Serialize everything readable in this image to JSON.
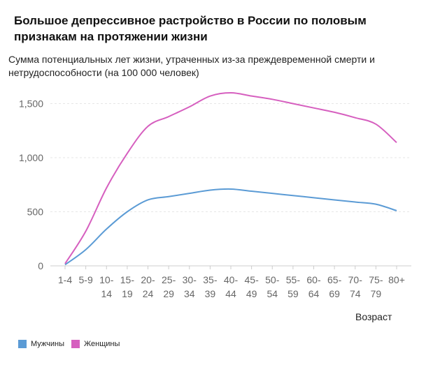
{
  "chart_data": {
    "type": "line",
    "title": "Большое депрессивное растройство в России по половым признакам на протяжении жизни",
    "subtitle": "Сумма потенциальных лет жизни, утраченных из-за преждевременной смерти и нетрудоспособности (на 100 000 человек)",
    "xlabel": "Возраст",
    "ylabel": "",
    "ylim": [
      0,
      1600
    ],
    "yticks": [
      0,
      500,
      1000,
      1500
    ],
    "ytick_labels": [
      "0",
      "500",
      "1,000",
      "1,500"
    ],
    "grid": true,
    "legend_position": "bottom-left",
    "categories": [
      [
        "1-4"
      ],
      [
        "5-9"
      ],
      [
        "10-",
        "14"
      ],
      [
        "15-",
        "19"
      ],
      [
        "20-",
        "24"
      ],
      [
        "25-",
        "29"
      ],
      [
        "30-",
        "34"
      ],
      [
        "35-",
        "39"
      ],
      [
        "40-",
        "44"
      ],
      [
        "45-",
        "49"
      ],
      [
        "50-",
        "54"
      ],
      [
        "55-",
        "59"
      ],
      [
        "60-",
        "64"
      ],
      [
        "65-",
        "69"
      ],
      [
        "70-",
        "74"
      ],
      [
        "75-",
        "79"
      ],
      [
        "80+"
      ]
    ],
    "series": [
      {
        "name": "Мужчины",
        "color": "#5b9bd5",
        "values": [
          10,
          150,
          340,
          500,
          610,
          640,
          670,
          700,
          710,
          690,
          670,
          650,
          630,
          610,
          590,
          570,
          510
        ]
      },
      {
        "name": "Женщины",
        "color": "#d65fbf",
        "values": [
          20,
          320,
          720,
          1040,
          1290,
          1380,
          1470,
          1570,
          1600,
          1570,
          1540,
          1500,
          1460,
          1420,
          1370,
          1310,
          1140
        ]
      }
    ]
  }
}
